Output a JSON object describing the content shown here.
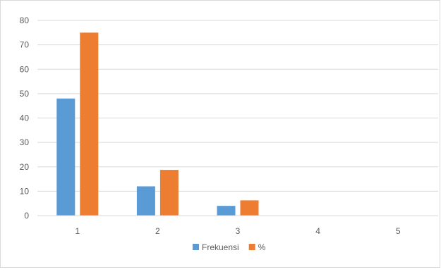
{
  "chart_data": {
    "type": "bar",
    "title": "",
    "xlabel": "",
    "ylabel": "",
    "categories": [
      "1",
      "2",
      "3",
      "4",
      "5"
    ],
    "ylim": [
      0,
      80
    ],
    "yticks": [
      0,
      10,
      20,
      30,
      40,
      50,
      60,
      70,
      80
    ],
    "grid": true,
    "legend_position": "bottom",
    "series": [
      {
        "name": "Frekuensi",
        "color": "#5b9bd5",
        "values": [
          48,
          12,
          4,
          0,
          0
        ]
      },
      {
        "name": "%",
        "color": "#ed7d31",
        "values": [
          75,
          18.75,
          6.25,
          0,
          0
        ]
      }
    ]
  }
}
